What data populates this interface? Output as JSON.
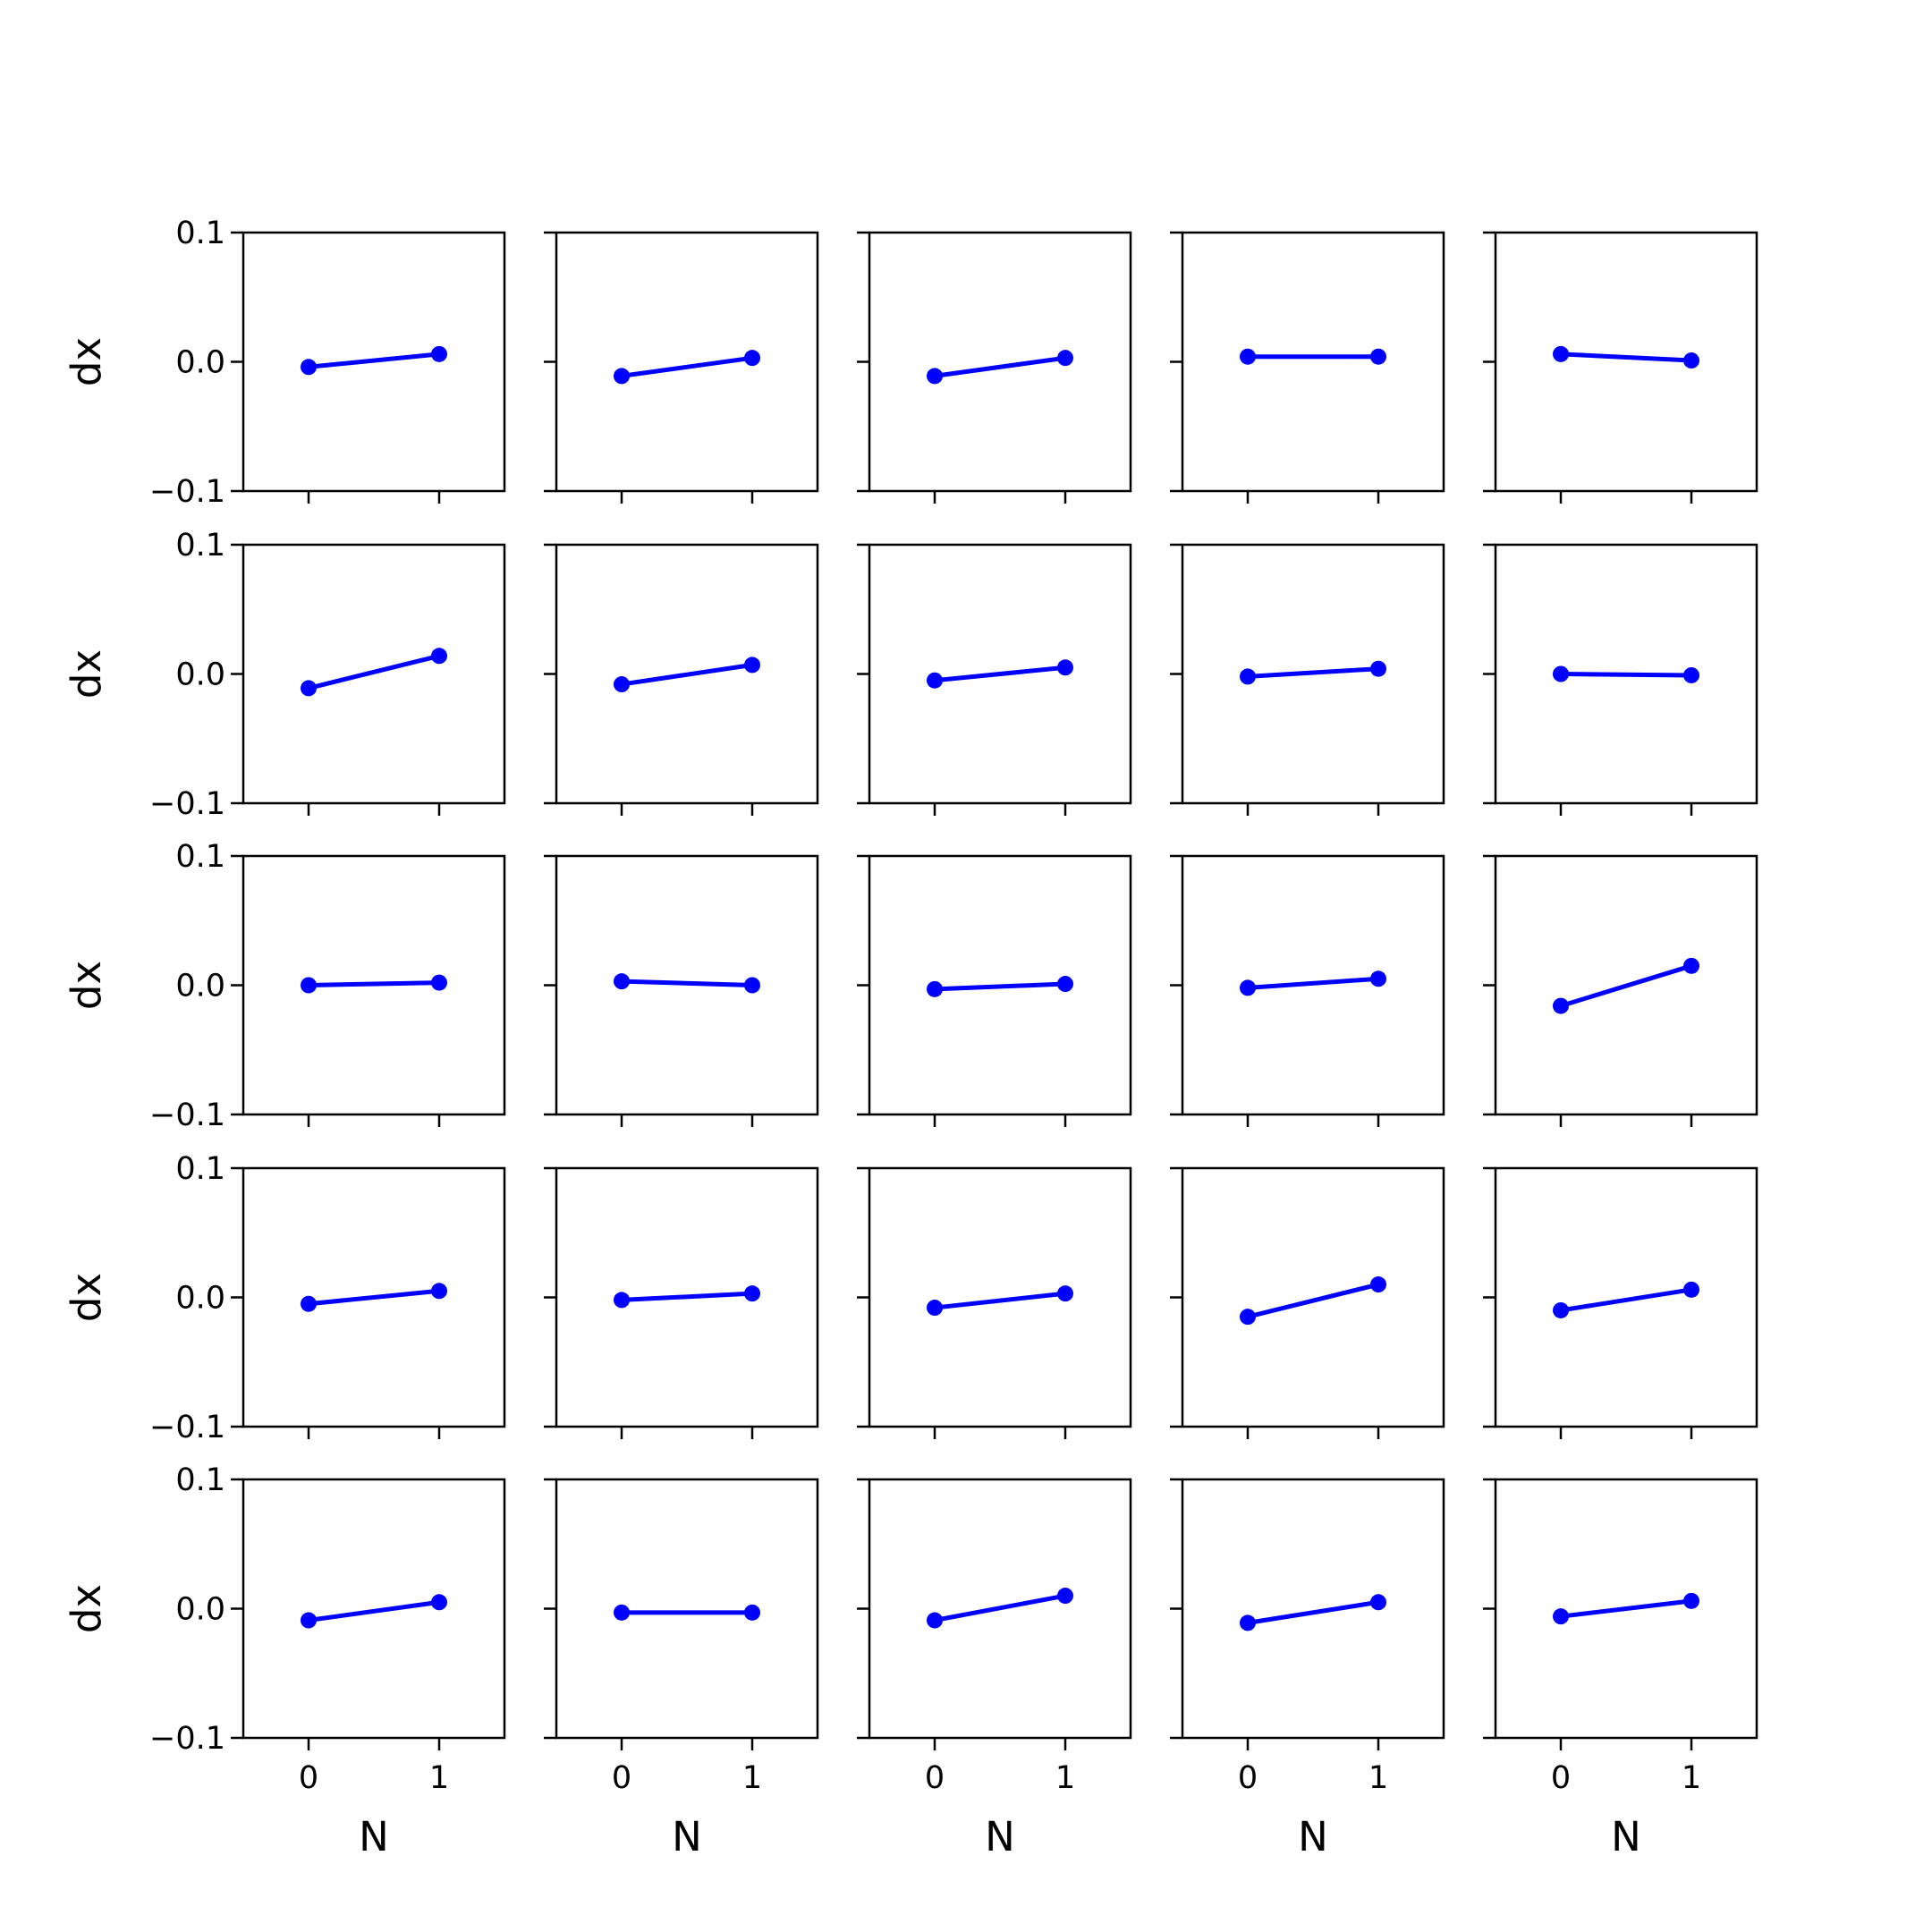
{
  "figure": {
    "rows": 5,
    "cols": 5,
    "ylabel": "dx",
    "xlabel": "N",
    "line_color": "#0000ff"
  },
  "chart_data": [
    {
      "type": "line",
      "row": 1,
      "col": 1,
      "x": [
        0,
        1
      ],
      "y": [
        -0.004,
        0.006
      ],
      "xticks": [
        "0",
        "1"
      ],
      "yticks": [
        "−0.1",
        "0.0",
        "0.1"
      ],
      "xlim": [
        -0.5,
        1.5
      ],
      "ylim": [
        -0.1,
        0.1
      ],
      "xlabel": "",
      "ylabel": "dx"
    },
    {
      "type": "line",
      "row": 1,
      "col": 2,
      "x": [
        0,
        1
      ],
      "y": [
        -0.011,
        0.003
      ],
      "xticks": [
        "0",
        "1"
      ],
      "yticks": [
        "−0.1",
        "0.0",
        "0.1"
      ],
      "xlim": [
        -0.5,
        1.5
      ],
      "ylim": [
        -0.1,
        0.1
      ],
      "xlabel": "",
      "ylabel": ""
    },
    {
      "type": "line",
      "row": 1,
      "col": 3,
      "x": [
        0,
        1
      ],
      "y": [
        -0.011,
        0.003
      ],
      "xticks": [
        "0",
        "1"
      ],
      "yticks": [
        "−0.1",
        "0.0",
        "0.1"
      ],
      "xlim": [
        -0.5,
        1.5
      ],
      "ylim": [
        -0.1,
        0.1
      ],
      "xlabel": "",
      "ylabel": ""
    },
    {
      "type": "line",
      "row": 1,
      "col": 4,
      "x": [
        0,
        1
      ],
      "y": [
        0.004,
        0.004
      ],
      "xticks": [
        "0",
        "1"
      ],
      "yticks": [
        "−0.1",
        "0.0",
        "0.1"
      ],
      "xlim": [
        -0.5,
        1.5
      ],
      "ylim": [
        -0.1,
        0.1
      ],
      "xlabel": "",
      "ylabel": ""
    },
    {
      "type": "line",
      "row": 1,
      "col": 5,
      "x": [
        0,
        1
      ],
      "y": [
        0.006,
        0.001
      ],
      "xticks": [
        "0",
        "1"
      ],
      "yticks": [
        "−0.1",
        "0.0",
        "0.1"
      ],
      "xlim": [
        -0.5,
        1.5
      ],
      "ylim": [
        -0.1,
        0.1
      ],
      "xlabel": "",
      "ylabel": ""
    },
    {
      "type": "line",
      "row": 2,
      "col": 1,
      "x": [
        0,
        1
      ],
      "y": [
        -0.011,
        0.014
      ],
      "xticks": [
        "0",
        "1"
      ],
      "yticks": [
        "−0.1",
        "0.0",
        "0.1"
      ],
      "xlim": [
        -0.5,
        1.5
      ],
      "ylim": [
        -0.1,
        0.1
      ],
      "xlabel": "",
      "ylabel": "dx"
    },
    {
      "type": "line",
      "row": 2,
      "col": 2,
      "x": [
        0,
        1
      ],
      "y": [
        -0.008,
        0.007
      ],
      "xticks": [
        "0",
        "1"
      ],
      "yticks": [
        "−0.1",
        "0.0",
        "0.1"
      ],
      "xlim": [
        -0.5,
        1.5
      ],
      "ylim": [
        -0.1,
        0.1
      ],
      "xlabel": "",
      "ylabel": ""
    },
    {
      "type": "line",
      "row": 2,
      "col": 3,
      "x": [
        0,
        1
      ],
      "y": [
        -0.005,
        0.005
      ],
      "xticks": [
        "0",
        "1"
      ],
      "yticks": [
        "−0.1",
        "0.0",
        "0.1"
      ],
      "xlim": [
        -0.5,
        1.5
      ],
      "ylim": [
        -0.1,
        0.1
      ],
      "xlabel": "",
      "ylabel": ""
    },
    {
      "type": "line",
      "row": 2,
      "col": 4,
      "x": [
        0,
        1
      ],
      "y": [
        -0.002,
        0.004
      ],
      "xticks": [
        "0",
        "1"
      ],
      "yticks": [
        "−0.1",
        "0.0",
        "0.1"
      ],
      "xlim": [
        -0.5,
        1.5
      ],
      "ylim": [
        -0.1,
        0.1
      ],
      "xlabel": "",
      "ylabel": ""
    },
    {
      "type": "line",
      "row": 2,
      "col": 5,
      "x": [
        0,
        1
      ],
      "y": [
        0.0,
        -0.001
      ],
      "xticks": [
        "0",
        "1"
      ],
      "yticks": [
        "−0.1",
        "0.0",
        "0.1"
      ],
      "xlim": [
        -0.5,
        1.5
      ],
      "ylim": [
        -0.1,
        0.1
      ],
      "xlabel": "",
      "ylabel": ""
    },
    {
      "type": "line",
      "row": 3,
      "col": 1,
      "x": [
        0,
        1
      ],
      "y": [
        0.0,
        0.002
      ],
      "xticks": [
        "0",
        "1"
      ],
      "yticks": [
        "−0.1",
        "0.0",
        "0.1"
      ],
      "xlim": [
        -0.5,
        1.5
      ],
      "ylim": [
        -0.1,
        0.1
      ],
      "xlabel": "",
      "ylabel": "dx"
    },
    {
      "type": "line",
      "row": 3,
      "col": 2,
      "x": [
        0,
        1
      ],
      "y": [
        0.003,
        0.0
      ],
      "xticks": [
        "0",
        "1"
      ],
      "yticks": [
        "−0.1",
        "0.0",
        "0.1"
      ],
      "xlim": [
        -0.5,
        1.5
      ],
      "ylim": [
        -0.1,
        0.1
      ],
      "xlabel": "",
      "ylabel": ""
    },
    {
      "type": "line",
      "row": 3,
      "col": 3,
      "x": [
        0,
        1
      ],
      "y": [
        -0.003,
        0.001
      ],
      "xticks": [
        "0",
        "1"
      ],
      "yticks": [
        "−0.1",
        "0.0",
        "0.1"
      ],
      "xlim": [
        -0.5,
        1.5
      ],
      "ylim": [
        -0.1,
        0.1
      ],
      "xlabel": "",
      "ylabel": ""
    },
    {
      "type": "line",
      "row": 3,
      "col": 4,
      "x": [
        0,
        1
      ],
      "y": [
        -0.002,
        0.005
      ],
      "xticks": [
        "0",
        "1"
      ],
      "yticks": [
        "−0.1",
        "0.0",
        "0.1"
      ],
      "xlim": [
        -0.5,
        1.5
      ],
      "ylim": [
        -0.1,
        0.1
      ],
      "xlabel": "",
      "ylabel": ""
    },
    {
      "type": "line",
      "row": 3,
      "col": 5,
      "x": [
        0,
        1
      ],
      "y": [
        -0.016,
        0.015
      ],
      "xticks": [
        "0",
        "1"
      ],
      "yticks": [
        "−0.1",
        "0.0",
        "0.1"
      ],
      "xlim": [
        -0.5,
        1.5
      ],
      "ylim": [
        -0.1,
        0.1
      ],
      "xlabel": "",
      "ylabel": ""
    },
    {
      "type": "line",
      "row": 4,
      "col": 1,
      "x": [
        0,
        1
      ],
      "y": [
        -0.005,
        0.005
      ],
      "xticks": [
        "0",
        "1"
      ],
      "yticks": [
        "−0.1",
        "0.0",
        "0.1"
      ],
      "xlim": [
        -0.5,
        1.5
      ],
      "ylim": [
        -0.1,
        0.1
      ],
      "xlabel": "",
      "ylabel": "dx"
    },
    {
      "type": "line",
      "row": 4,
      "col": 2,
      "x": [
        0,
        1
      ],
      "y": [
        -0.002,
        0.003
      ],
      "xticks": [
        "0",
        "1"
      ],
      "yticks": [
        "−0.1",
        "0.0",
        "0.1"
      ],
      "xlim": [
        -0.5,
        1.5
      ],
      "ylim": [
        -0.1,
        0.1
      ],
      "xlabel": "",
      "ylabel": ""
    },
    {
      "type": "line",
      "row": 4,
      "col": 3,
      "x": [
        0,
        1
      ],
      "y": [
        -0.008,
        0.003
      ],
      "xticks": [
        "0",
        "1"
      ],
      "yticks": [
        "−0.1",
        "0.0",
        "0.1"
      ],
      "xlim": [
        -0.5,
        1.5
      ],
      "ylim": [
        -0.1,
        0.1
      ],
      "xlabel": "",
      "ylabel": ""
    },
    {
      "type": "line",
      "row": 4,
      "col": 4,
      "x": [
        0,
        1
      ],
      "y": [
        -0.015,
        0.01
      ],
      "xticks": [
        "0",
        "1"
      ],
      "yticks": [
        "−0.1",
        "0.0",
        "0.1"
      ],
      "xlim": [
        -0.5,
        1.5
      ],
      "ylim": [
        -0.1,
        0.1
      ],
      "xlabel": "",
      "ylabel": ""
    },
    {
      "type": "line",
      "row": 4,
      "col": 5,
      "x": [
        0,
        1
      ],
      "y": [
        -0.01,
        0.006
      ],
      "xticks": [
        "0",
        "1"
      ],
      "yticks": [
        "−0.1",
        "0.0",
        "0.1"
      ],
      "xlim": [
        -0.5,
        1.5
      ],
      "ylim": [
        -0.1,
        0.1
      ],
      "xlabel": "",
      "ylabel": ""
    },
    {
      "type": "line",
      "row": 5,
      "col": 1,
      "x": [
        0,
        1
      ],
      "y": [
        -0.009,
        0.005
      ],
      "xticks": [
        "0",
        "1"
      ],
      "yticks": [
        "−0.1",
        "0.0",
        "0.1"
      ],
      "xlim": [
        -0.5,
        1.5
      ],
      "ylim": [
        -0.1,
        0.1
      ],
      "xlabel": "N",
      "ylabel": "dx"
    },
    {
      "type": "line",
      "row": 5,
      "col": 2,
      "x": [
        0,
        1
      ],
      "y": [
        -0.003,
        -0.003
      ],
      "xticks": [
        "0",
        "1"
      ],
      "yticks": [
        "−0.1",
        "0.0",
        "0.1"
      ],
      "xlim": [
        -0.5,
        1.5
      ],
      "ylim": [
        -0.1,
        0.1
      ],
      "xlabel": "N",
      "ylabel": ""
    },
    {
      "type": "line",
      "row": 5,
      "col": 3,
      "x": [
        0,
        1
      ],
      "y": [
        -0.009,
        0.01
      ],
      "xticks": [
        "0",
        "1"
      ],
      "yticks": [
        "−0.1",
        "0.0",
        "0.1"
      ],
      "xlim": [
        -0.5,
        1.5
      ],
      "ylim": [
        -0.1,
        0.1
      ],
      "xlabel": "N",
      "ylabel": ""
    },
    {
      "type": "line",
      "row": 5,
      "col": 4,
      "x": [
        0,
        1
      ],
      "y": [
        -0.011,
        0.005
      ],
      "xticks": [
        "0",
        "1"
      ],
      "yticks": [
        "−0.1",
        "0.0",
        "0.1"
      ],
      "xlim": [
        -0.5,
        1.5
      ],
      "ylim": [
        -0.1,
        0.1
      ],
      "xlabel": "N",
      "ylabel": ""
    },
    {
      "type": "line",
      "row": 5,
      "col": 5,
      "x": [
        0,
        1
      ],
      "y": [
        -0.006,
        0.006
      ],
      "xticks": [
        "0",
        "1"
      ],
      "yticks": [
        "−0.1",
        "0.0",
        "0.1"
      ],
      "xlim": [
        -0.5,
        1.5
      ],
      "ylim": [
        -0.1,
        0.1
      ],
      "xlabel": "N",
      "ylabel": ""
    }
  ]
}
